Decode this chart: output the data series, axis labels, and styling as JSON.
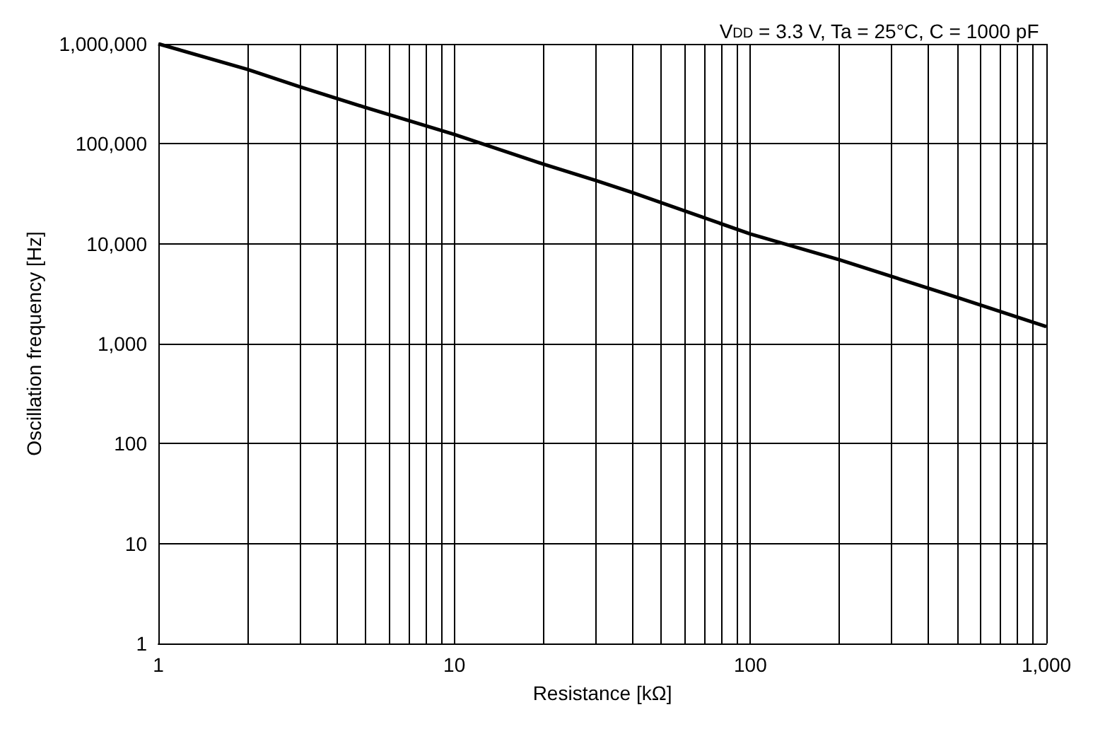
{
  "chart_data": {
    "type": "line",
    "title": "V$_{DD}$ = 3.3 V, Ta = 25°C, C = 1000 pF",
    "xlabel": "Resistance [kΩ]",
    "ylabel": "Oscillation frequency [Hz]",
    "x": [
      1,
      2,
      3,
      5,
      10,
      20,
      30,
      40,
      100,
      200,
      500,
      1000
    ],
    "series": [
      {
        "color": "#000000",
        "values": [
          1000000,
          556000,
          373000,
          231000,
          124000,
          62500,
          43000,
          32500,
          12500,
          6900,
          2900,
          1480
        ]
      }
    ],
    "log": "xy",
    "grid": true,
    "marker": "none",
    "line_style": "solid",
    "xlim": [
      1,
      1000
    ],
    "ylim": [
      1,
      1000000
    ],
    "xticks": [
      1,
      {
        "value": 2,
        "label": null
      },
      {
        "value": 3,
        "label": null
      },
      {
        "value": 4,
        "label": null
      },
      {
        "value": 5,
        "label": null
      },
      {
        "value": 6,
        "label": null
      },
      {
        "value": 7,
        "label": null
      },
      {
        "value": 8,
        "label": null
      },
      {
        "value": 9,
        "label": null
      },
      10,
      {
        "value": 20,
        "label": null
      },
      {
        "value": 30,
        "label": null
      },
      {
        "value": 40,
        "label": null
      },
      {
        "value": 50,
        "label": null
      },
      {
        "value": 60,
        "label": null
      },
      {
        "value": 70,
        "label": null
      },
      {
        "value": 80,
        "label": null
      },
      {
        "value": 90,
        "label": null
      },
      100,
      {
        "value": 200,
        "label": null
      },
      {
        "value": 300,
        "label": null
      },
      {
        "value": 400,
        "label": null
      },
      {
        "value": 500,
        "label": null
      },
      {
        "value": 600,
        "label": null
      },
      {
        "value": 700,
        "label": null
      },
      {
        "value": 800,
        "label": null
      },
      {
        "value": 900,
        "label": null
      },
      {
        "value": 1000,
        "label": "1,000"
      }
    ],
    "yticks": [
      1,
      10,
      100,
      {
        "value": 1000,
        "label": "1,000"
      },
      {
        "value": 10000,
        "label": "10,000"
      },
      {
        "value": 100000,
        "label": "100,000"
      },
      {
        "value": 1000000,
        "label": "1,000,000"
      }
    ]
  }
}
